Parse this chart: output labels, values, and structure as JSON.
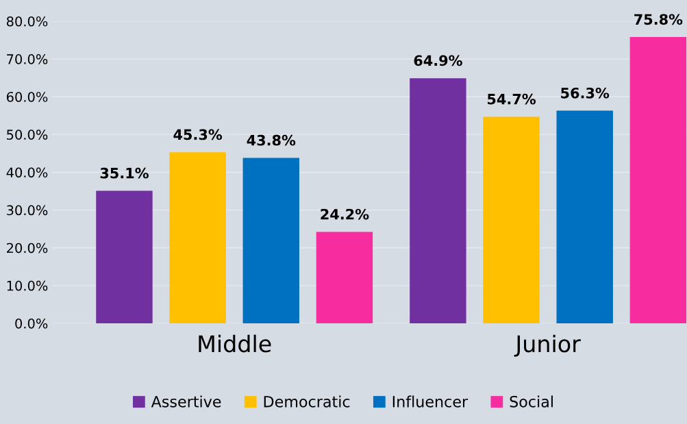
{
  "chart_data": {
    "type": "bar",
    "categories": [
      "Middle",
      "Junior"
    ],
    "series": [
      {
        "name": "Assertive",
        "color": "#7030a0",
        "values": [
          35.1,
          64.9
        ]
      },
      {
        "name": "Democratic",
        "color": "#ffc000",
        "values": [
          45.3,
          54.7
        ]
      },
      {
        "name": "Influencer",
        "color": "#0070c0",
        "values": [
          43.8,
          56.3
        ]
      },
      {
        "name": "Social",
        "color": "#f72c9f",
        "values": [
          24.2,
          75.8
        ]
      }
    ],
    "ylim": [
      0,
      80
    ],
    "yticks": [
      {
        "value": 0,
        "label": "0.0%"
      },
      {
        "value": 10,
        "label": "10.0%"
      },
      {
        "value": 20,
        "label": "20.0%"
      },
      {
        "value": 30,
        "label": "30.0%"
      },
      {
        "value": 40,
        "label": "40.0%"
      },
      {
        "value": 50,
        "label": "50.0%"
      },
      {
        "value": 60,
        "label": "60.0%"
      },
      {
        "value": 70,
        "label": "70.0%"
      },
      {
        "value": 80,
        "label": "80.0%"
      }
    ],
    "value_labels": [
      [
        "35.1%",
        "64.9%"
      ],
      [
        "45.3%",
        "54.7%"
      ],
      [
        "43.8%",
        "56.3%"
      ],
      [
        "24.2%",
        "75.8%"
      ]
    ],
    "grid": "y",
    "legend": "bottom"
  }
}
